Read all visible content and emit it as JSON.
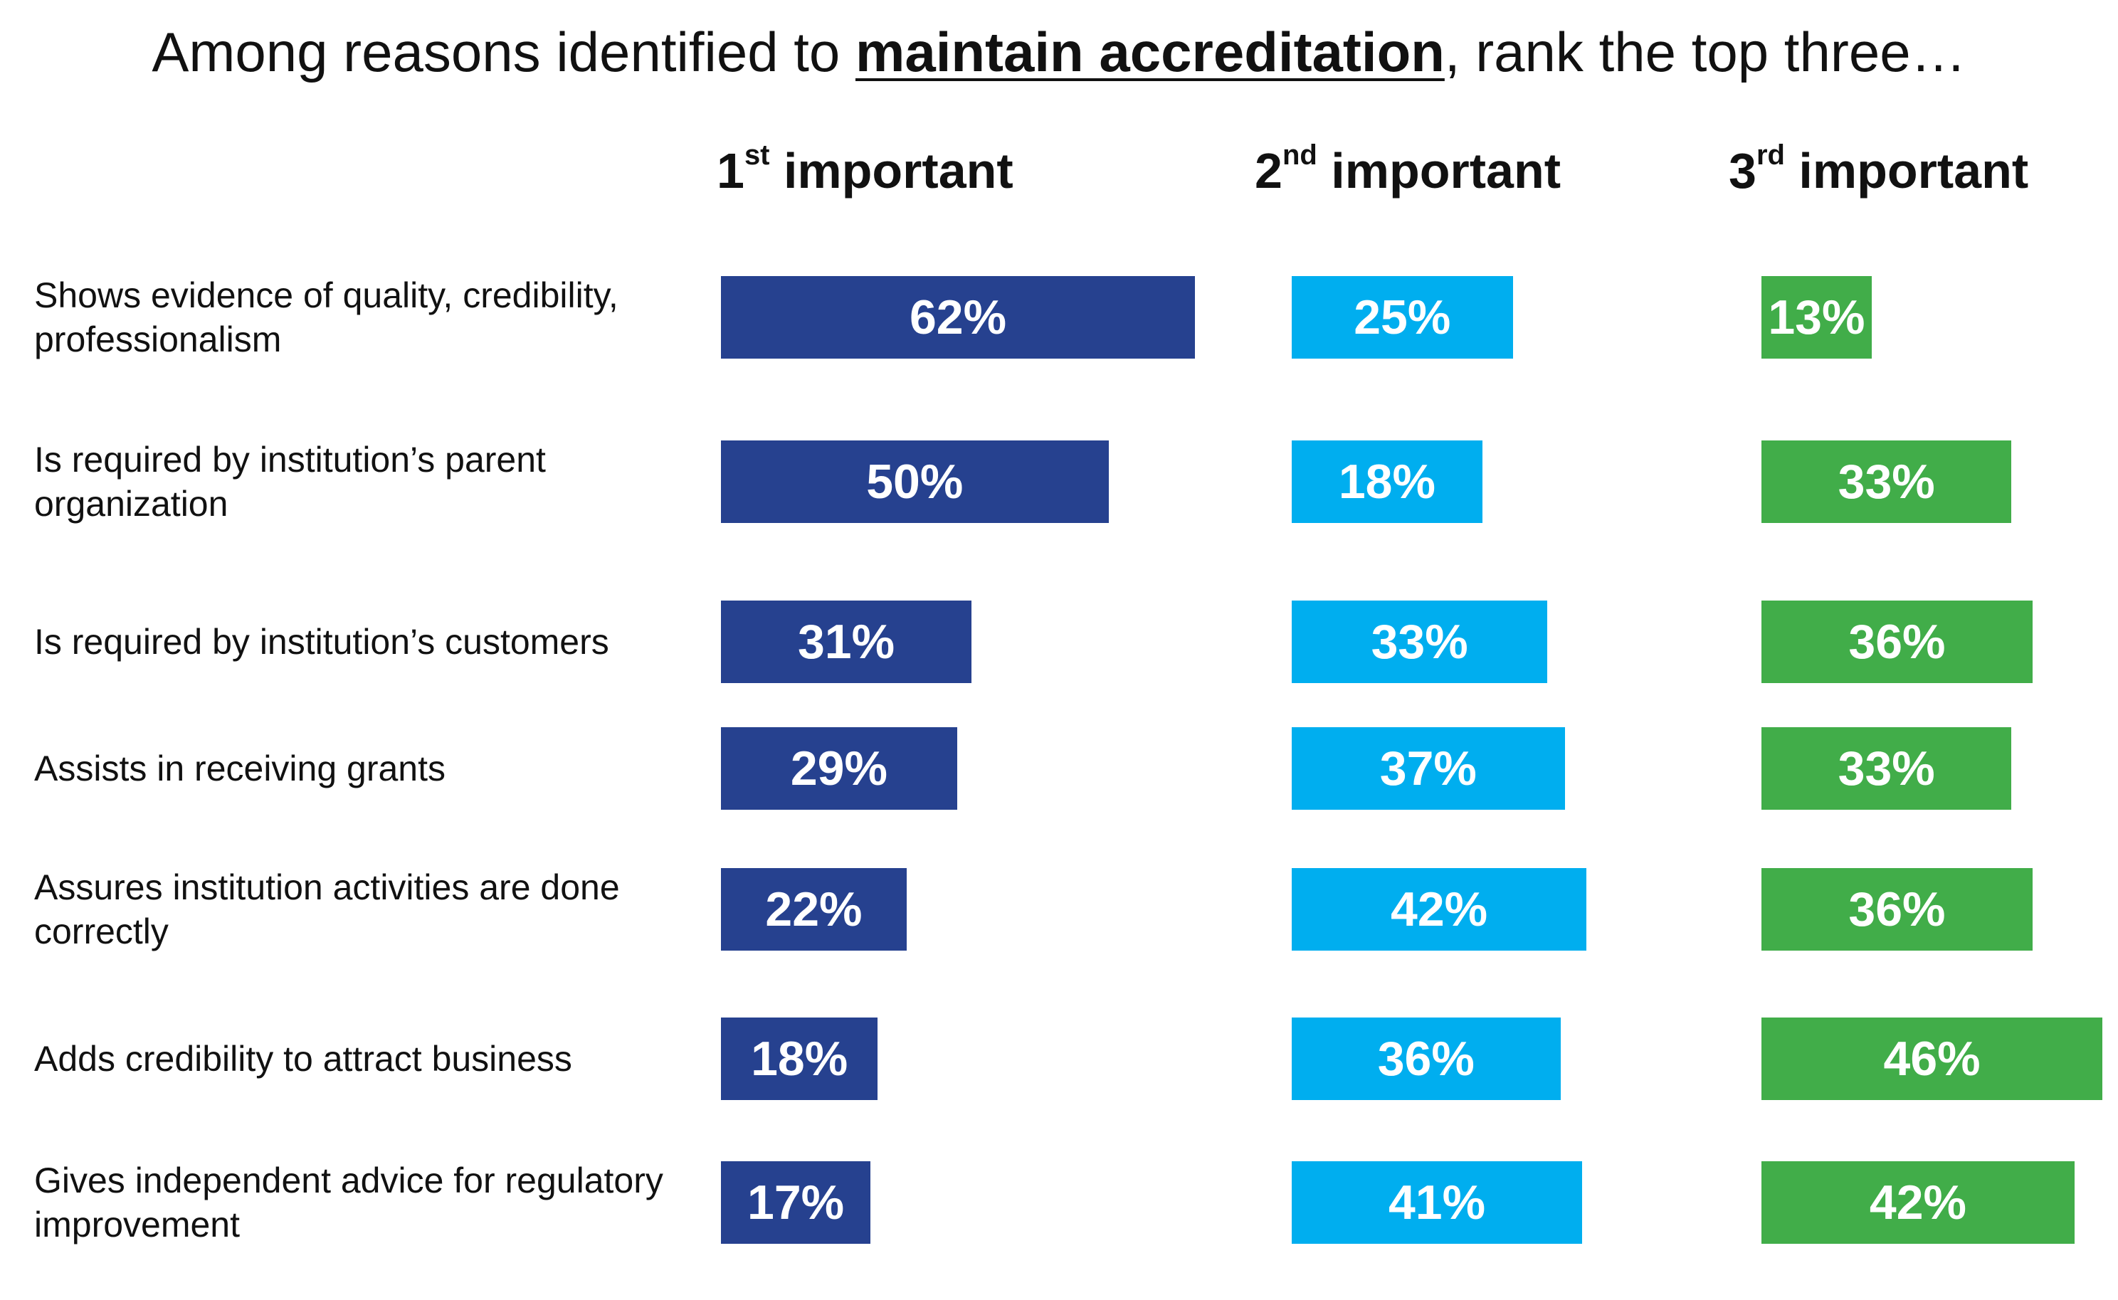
{
  "chart_data": {
    "type": "bar",
    "orientation": "horizontal",
    "title_parts": {
      "before": "Among reasons identified to ",
      "emphasis": "maintain accreditation",
      "after": ", rank the top three…"
    },
    "columns": [
      {
        "num": "1",
        "sup": "st",
        "text": " important"
      },
      {
        "num": "2",
        "sup": "nd",
        "text": " important"
      },
      {
        "num": "3",
        "sup": "rd",
        "text": " important"
      }
    ],
    "categories": [
      "Shows evidence of quality, credibility, professionalism",
      "Is required by institution’s parent organization",
      "Is required by institution’s customers",
      "Assists in receiving grants",
      "Assures institution activities are done correctly",
      "Adds credibility to attract business",
      "Gives independent advice for regulatory improvement"
    ],
    "series": [
      {
        "values": [
          62,
          50,
          31,
          29,
          22,
          18,
          17
        ],
        "color": "#26418f"
      },
      {
        "values": [
          25,
          18,
          33,
          37,
          42,
          36,
          41
        ],
        "color": "#00aeef"
      },
      {
        "values": [
          13,
          33,
          36,
          33,
          36,
          46,
          42
        ],
        "color": "#41ad49"
      }
    ],
    "unit": "%",
    "grid": false,
    "legend": "none"
  }
}
